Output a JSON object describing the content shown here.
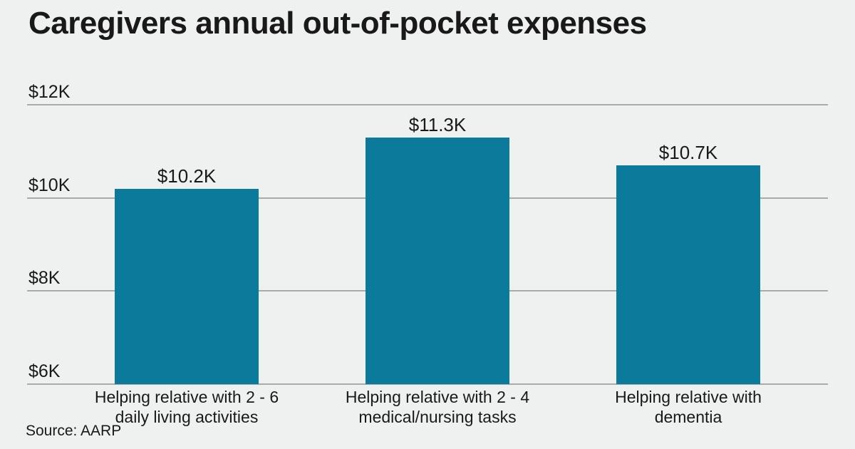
{
  "chart_data": {
    "type": "bar",
    "title": "Caregivers annual out-of-pocket expenses",
    "categories": [
      "Helping relative with 2 - 6 daily living activities",
      "Helping relative with 2 - 4 medical/nursing tasks",
      "Helping relative with dementia"
    ],
    "category_lines": [
      [
        "Helping relative with 2 - 6",
        "daily living activities"
      ],
      [
        "Helping relative with 2 - 4",
        "medical/nursing tasks"
      ],
      [
        "Helping relative with",
        "dementia"
      ]
    ],
    "values": [
      10.2,
      11.3,
      10.7
    ],
    "value_labels": [
      "$10.2K",
      "$11.3K",
      "$10.7K"
    ],
    "xlabel": "",
    "ylabel": "",
    "ylim": [
      6,
      12
    ],
    "yticks": [
      {
        "value": 12,
        "label": "$12K"
      },
      {
        "value": 10,
        "label": "$10K"
      },
      {
        "value": 8,
        "label": "$8K"
      },
      {
        "value": 6,
        "label": "$6K"
      }
    ],
    "grid": true,
    "legend": false,
    "source": "Source: AARP",
    "bar_color": "#0C7B9B",
    "background_color": "#EFF1F0",
    "gridline_color": "#A9ABAA",
    "text_color": "#191919"
  }
}
